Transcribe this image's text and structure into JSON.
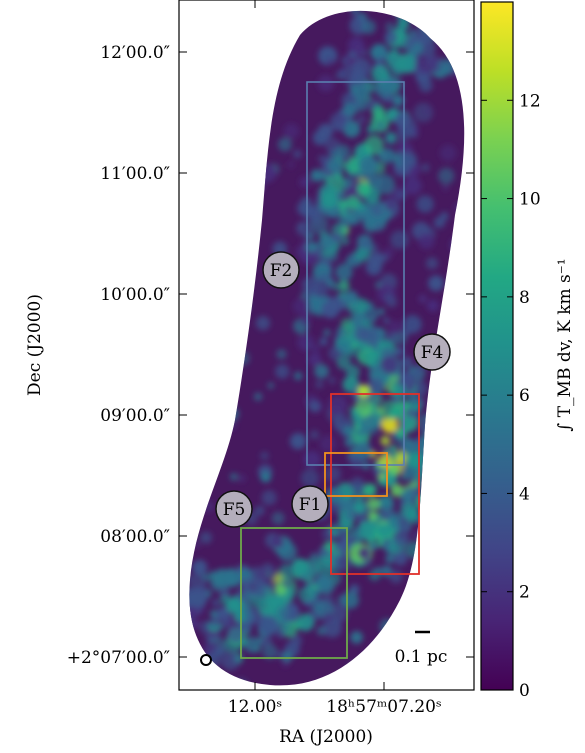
{
  "chart_data": {
    "type": "heatmap",
    "description": "Integrated intensity map of a filamentary molecular cloud (RA/Dec)",
    "xlabel": "RA (J2000)",
    "ylabel": "Dec (J2000)",
    "x_ticks": [
      "12.00ˢ",
      "18ʰ57ᵐ07.20ˢ"
    ],
    "y_ticks": [
      "12′00.0″",
      "11′00.0″",
      "10′00.0″",
      "09′00.0″",
      "08′00.0″",
      "+2°07′00.0″"
    ],
    "colorbar": {
      "label": "∫ T_MB dv,  K km s⁻¹",
      "ticks": [
        0,
        2,
        4,
        6,
        8,
        10,
        12
      ],
      "range": [
        0,
        14
      ],
      "colormap": "viridis"
    },
    "scalebar_label": "0.1 pc",
    "markers": [
      "F1",
      "F2",
      "F4",
      "F5"
    ],
    "boxes": [
      {
        "name": "blue box",
        "color": "#5a7fb0"
      },
      {
        "name": "red box",
        "color": "#e0302a"
      },
      {
        "name": "orange box",
        "color": "#f0901e"
      },
      {
        "name": "green box",
        "color": "#6fa84a"
      }
    ],
    "grid": false
  }
}
